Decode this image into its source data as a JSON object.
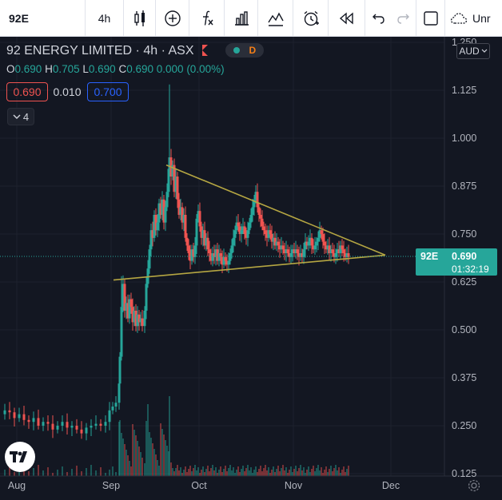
{
  "toolbar": {
    "symbol": "92E",
    "interval": "4h",
    "unnamed_label": "Unr"
  },
  "legend": {
    "name": "92 ENERGY LIMITED",
    "interval": "4h",
    "exchange": "ASX",
    "status_badge": "D",
    "ohlc": {
      "o_label": "O",
      "o": "0.690",
      "h_label": "H",
      "h": "0.705",
      "l_label": "L",
      "l": "0.690",
      "c_label": "C",
      "c": "0.690",
      "change": "0.000 (0.00%)"
    },
    "sell_price": "0.690",
    "spread": "0.010",
    "buy_price": "0.700",
    "indicators_count": "4"
  },
  "currency": "AUD",
  "price_tag": {
    "symbol": "92E",
    "price": "0.690",
    "countdown": "01:32:19"
  },
  "colors": {
    "up": "#26a69a",
    "down": "#ef5350",
    "trendline": "#b5a642",
    "background": "#131722"
  },
  "chart_data": {
    "type": "candlestick",
    "title": "92 ENERGY LIMITED · 4h · ASX",
    "x_ticks": [
      "Aug",
      "Sep",
      "Oct",
      "Nov",
      "Dec"
    ],
    "y_ticks": [
      "1.250",
      "1.125",
      "1.000",
      "0.875",
      "0.750",
      "0.625",
      "0.500",
      "0.375",
      "0.250",
      "0.125"
    ],
    "y_range": [
      0.12,
      1.25
    ],
    "last_price": 0.69,
    "price_path": [
      [
        0,
        0.28
      ],
      [
        6,
        0.29
      ],
      [
        12,
        0.285
      ],
      [
        18,
        0.27
      ],
      [
        24,
        0.28
      ],
      [
        30,
        0.265
      ],
      [
        36,
        0.26
      ],
      [
        42,
        0.27
      ],
      [
        48,
        0.25
      ],
      [
        54,
        0.26
      ],
      [
        60,
        0.255
      ],
      [
        66,
        0.24
      ],
      [
        72,
        0.25
      ],
      [
        78,
        0.26
      ],
      [
        84,
        0.245
      ],
      [
        90,
        0.25
      ],
      [
        96,
        0.24
      ],
      [
        102,
        0.23
      ],
      [
        108,
        0.245
      ],
      [
        114,
        0.25
      ],
      [
        120,
        0.255
      ],
      [
        126,
        0.25
      ],
      [
        132,
        0.26
      ],
      [
        137,
        0.29
      ],
      [
        141,
        0.3
      ],
      [
        145,
        0.31
      ],
      [
        149,
        0.36
      ],
      [
        150,
        0.43
      ],
      [
        152,
        0.56
      ],
      [
        154,
        0.62
      ],
      [
        156,
        0.55
      ],
      [
        158,
        0.57
      ],
      [
        160,
        0.53
      ],
      [
        162,
        0.58
      ],
      [
        164,
        0.56
      ],
      [
        166,
        0.52
      ],
      [
        168,
        0.55
      ],
      [
        170,
        0.51
      ],
      [
        172,
        0.54
      ],
      [
        174,
        0.52
      ],
      [
        176,
        0.53
      ],
      [
        178,
        0.51
      ],
      [
        181,
        0.55
      ],
      [
        183,
        0.62
      ],
      [
        185,
        0.66
      ],
      [
        187,
        0.71
      ],
      [
        189,
        0.76
      ],
      [
        191,
        0.74
      ],
      [
        193,
        0.8
      ],
      [
        195,
        0.76
      ],
      [
        197,
        0.78
      ],
      [
        199,
        0.83
      ],
      [
        201,
        0.8
      ],
      [
        203,
        0.84
      ],
      [
        205,
        0.78
      ],
      [
        207,
        0.82
      ],
      [
        209,
        0.86
      ],
      [
        211,
        0.92
      ],
      [
        212,
        0.95
      ],
      [
        214,
        0.9
      ],
      [
        216,
        0.93
      ],
      [
        218,
        0.86
      ],
      [
        220,
        0.9
      ],
      [
        222,
        0.84
      ],
      [
        224,
        0.8
      ],
      [
        226,
        0.82
      ],
      [
        228,
        0.78
      ],
      [
        230,
        0.8
      ],
      [
        232,
        0.74
      ],
      [
        234,
        0.72
      ],
      [
        236,
        0.7
      ],
      [
        238,
        0.68
      ],
      [
        240,
        0.71
      ],
      [
        242,
        0.69
      ],
      [
        244,
        0.72
      ],
      [
        246,
        0.79
      ],
      [
        248,
        0.81
      ],
      [
        250,
        0.77
      ],
      [
        252,
        0.74
      ],
      [
        254,
        0.76
      ],
      [
        256,
        0.72
      ],
      [
        258,
        0.74
      ],
      [
        260,
        0.71
      ],
      [
        262,
        0.7
      ],
      [
        264,
        0.68
      ],
      [
        266,
        0.7
      ],
      [
        268,
        0.69
      ],
      [
        270,
        0.71
      ],
      [
        272,
        0.68
      ],
      [
        274,
        0.7
      ],
      [
        276,
        0.69
      ],
      [
        278,
        0.67
      ],
      [
        280,
        0.69
      ],
      [
        282,
        0.68
      ],
      [
        284,
        0.67
      ],
      [
        286,
        0.68
      ],
      [
        288,
        0.7
      ],
      [
        290,
        0.72
      ],
      [
        292,
        0.74
      ],
      [
        294,
        0.76
      ],
      [
        296,
        0.78
      ],
      [
        298,
        0.77
      ],
      [
        300,
        0.75
      ],
      [
        302,
        0.76
      ],
      [
        304,
        0.77
      ],
      [
        306,
        0.75
      ],
      [
        308,
        0.74
      ],
      [
        310,
        0.76
      ],
      [
        312,
        0.78
      ],
      [
        314,
        0.8
      ],
      [
        316,
        0.82
      ],
      [
        318,
        0.84
      ],
      [
        320,
        0.86
      ],
      [
        322,
        0.82
      ],
      [
        324,
        0.8
      ],
      [
        326,
        0.79
      ],
      [
        328,
        0.77
      ],
      [
        330,
        0.76
      ],
      [
        332,
        0.75
      ],
      [
        334,
        0.74
      ],
      [
        336,
        0.76
      ],
      [
        338,
        0.75
      ],
      [
        340,
        0.73
      ],
      [
        342,
        0.74
      ],
      [
        344,
        0.72
      ],
      [
        346,
        0.73
      ],
      [
        348,
        0.72
      ],
      [
        350,
        0.71
      ],
      [
        352,
        0.72
      ],
      [
        354,
        0.71
      ],
      [
        356,
        0.7
      ],
      [
        358,
        0.71
      ],
      [
        360,
        0.7
      ],
      [
        362,
        0.69
      ],
      [
        364,
        0.7
      ],
      [
        366,
        0.71
      ],
      [
        368,
        0.7
      ],
      [
        370,
        0.71
      ],
      [
        372,
        0.7
      ],
      [
        374,
        0.69
      ],
      [
        376,
        0.7
      ],
      [
        378,
        0.69
      ],
      [
        380,
        0.71
      ],
      [
        382,
        0.73
      ],
      [
        384,
        0.72
      ],
      [
        386,
        0.73
      ],
      [
        388,
        0.74
      ],
      [
        390,
        0.72
      ],
      [
        392,
        0.71
      ],
      [
        394,
        0.72
      ],
      [
        396,
        0.73
      ],
      [
        398,
        0.74
      ],
      [
        400,
        0.76
      ],
      [
        402,
        0.75
      ],
      [
        404,
        0.73
      ],
      [
        406,
        0.72
      ],
      [
        408,
        0.71
      ],
      [
        410,
        0.72
      ],
      [
        412,
        0.7
      ],
      [
        414,
        0.71
      ],
      [
        416,
        0.7
      ],
      [
        418,
        0.69
      ],
      [
        420,
        0.7
      ],
      [
        422,
        0.71
      ],
      [
        424,
        0.7
      ],
      [
        426,
        0.72
      ],
      [
        428,
        0.71
      ],
      [
        430,
        0.7
      ],
      [
        432,
        0.69
      ],
      [
        434,
        0.7
      ],
      [
        436,
        0.69
      ]
    ],
    "trendlines": [
      {
        "name": "upper",
        "from": [
          208,
          0.93
        ],
        "to": [
          482,
          0.695
        ]
      },
      {
        "name": "lower",
        "from": [
          142,
          0.63
        ],
        "to": [
          482,
          0.695
        ]
      }
    ],
    "grid": true
  }
}
